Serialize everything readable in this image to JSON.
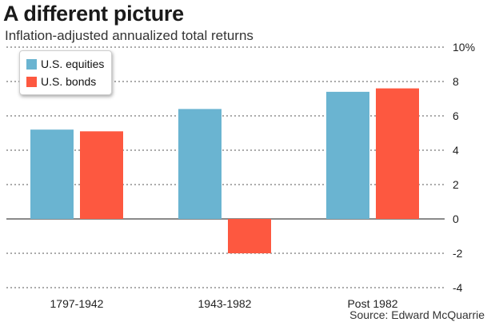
{
  "title": "A different picture",
  "subtitle": "Inflation-adjusted annualized total returns",
  "source": "Source: Edward McQuarrie",
  "chart_data": {
    "type": "bar",
    "categories": [
      "1797-1942",
      "1943-1982",
      "Post 1982"
    ],
    "series": [
      {
        "name": "U.S. equities",
        "color": "#6ab4d1",
        "values": [
          5.2,
          6.4,
          7.4
        ]
      },
      {
        "name": "U.S. bonds",
        "color": "#fd5840",
        "values": [
          5.1,
          -2.0,
          7.6
        ]
      }
    ],
    "ylim": [
      -4,
      10
    ],
    "yticks": [
      -4,
      -2,
      0,
      2,
      4,
      6,
      8,
      10
    ],
    "ytick_labels": [
      "-4",
      "-2",
      "0",
      "2",
      "4",
      "6",
      "8",
      "10%"
    ],
    "grid": true,
    "legend_position": "top-left"
  }
}
